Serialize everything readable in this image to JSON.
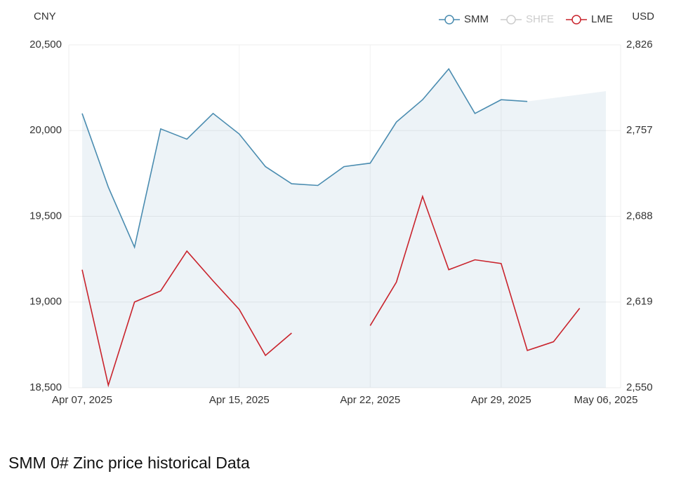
{
  "chart_data": {
    "type": "line",
    "y_label": "CNY",
    "y2_label": "USD",
    "title": "SMM 0# Zinc price historical Data",
    "categories": [
      "Apr 07, 2025",
      null,
      null,
      null,
      null,
      null,
      "Apr 15, 2025",
      null,
      null,
      null,
      null,
      "Apr 22, 2025",
      null,
      null,
      null,
      null,
      "Apr 29, 2025",
      null,
      null,
      null,
      "May 06, 2025"
    ],
    "series": [
      {
        "name": "SMM",
        "color": "#4a8cb0",
        "area": true,
        "visible": true,
        "values": [
          20100,
          19670,
          19320,
          20010,
          19950,
          20100,
          19980,
          19790,
          19690,
          19680,
          19790,
          19810,
          20050,
          20180,
          20360,
          20100,
          20180,
          20170,
          null,
          null,
          20230
        ]
      },
      {
        "name": "SHFE",
        "color": "#cccccc",
        "visible": false,
        "values": [
          null,
          null,
          null,
          null,
          null,
          null,
          null,
          null,
          null,
          null,
          null,
          null,
          null,
          null,
          null,
          null,
          null,
          null,
          null,
          null,
          null
        ]
      },
      {
        "name": "LME",
        "color": "#c9232c",
        "axis": "y2",
        "visible": true,
        "values": [
          2645,
          2552,
          2619,
          2628,
          2660,
          2636,
          2613,
          2576,
          2594,
          null,
          null,
          2600,
          2635,
          2704,
          2645,
          2653,
          2650,
          2580,
          2587,
          2614,
          null
        ]
      }
    ],
    "ylim": [
      18500,
      20500
    ],
    "yticks": [
      {
        "value": 18500,
        "label": "18,500"
      },
      {
        "value": 19000,
        "label": "19,000"
      },
      {
        "value": 19500,
        "label": "19,500"
      },
      {
        "value": 20000,
        "label": "20,000"
      },
      {
        "value": 20500,
        "label": "20,500"
      }
    ],
    "y2lim": [
      2550,
      2826
    ],
    "y2ticks": [
      {
        "value": 2550,
        "label": "2,550"
      },
      {
        "value": 2619,
        "label": "2,619"
      },
      {
        "value": 2688,
        "label": "2,688"
      },
      {
        "value": 2757,
        "label": "2,757"
      },
      {
        "value": 2826,
        "label": "2,826"
      }
    ],
    "grid": true,
    "legend": "top-right"
  }
}
